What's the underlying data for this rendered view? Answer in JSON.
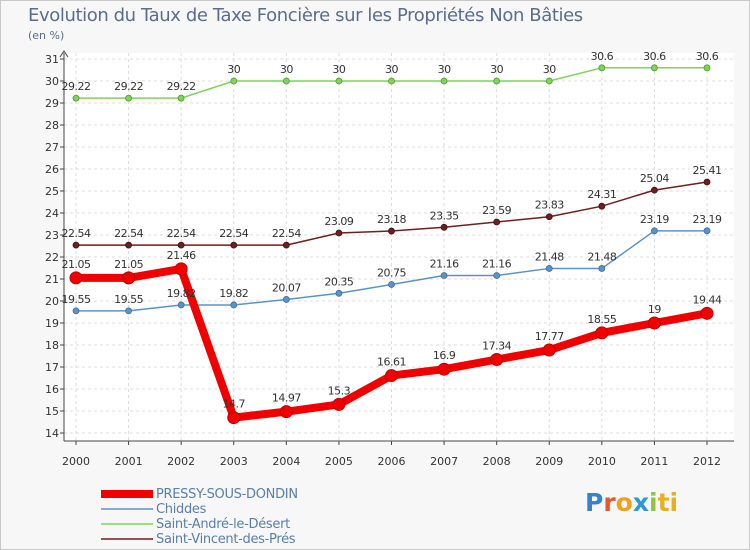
{
  "chart_data": {
    "type": "line",
    "title": "Evolution du Taux de Taxe Foncière sur les Propriétés Non Bâties",
    "subtitle": "(en %)",
    "x": [
      "2000",
      "2001",
      "2002",
      "2003",
      "2004",
      "2005",
      "2006",
      "2007",
      "2008",
      "2009",
      "2010",
      "2011",
      "2012"
    ],
    "ylim": [
      14,
      31
    ],
    "yticks": [
      "14",
      "15",
      "16",
      "17",
      "18",
      "19",
      "20",
      "21",
      "22",
      "23",
      "24",
      "25",
      "26",
      "27",
      "28",
      "29",
      "30",
      "31"
    ],
    "series": [
      {
        "name": "PRESSY-SOUS-DONDIN",
        "color": "#f00000",
        "values": [
          21.05,
          21.05,
          21.46,
          14.7,
          14.97,
          15.3,
          16.61,
          16.9,
          17.34,
          17.77,
          18.55,
          19,
          19.44
        ],
        "labels": [
          "21.05",
          "21.05",
          "21.46",
          "14.7",
          "14.97",
          "15.3",
          "16.61",
          "16.9",
          "17.34",
          "17.77",
          "18.55",
          "19",
          "19.44"
        ]
      },
      {
        "name": "Chiddes",
        "color": "#5b93c7",
        "values": [
          19.55,
          19.55,
          19.82,
          19.82,
          20.07,
          20.35,
          20.75,
          21.16,
          21.16,
          21.48,
          21.48,
          23.19,
          23.19
        ],
        "labels": [
          "19.55",
          "19.55",
          "19.82",
          "19.82",
          "20.07",
          "20.35",
          "20.75",
          "21.16",
          "21.16",
          "21.48",
          "21.48",
          "23.19",
          "23.19"
        ]
      },
      {
        "name": "Saint-André-le-Désert",
        "color": "#7fd35a",
        "values": [
          29.22,
          29.22,
          29.22,
          30,
          30,
          30,
          30,
          30,
          30,
          30,
          30.6,
          30.6,
          30.6
        ],
        "labels": [
          "29.22",
          "29.22",
          "29.22",
          "30",
          "30",
          "30",
          "30",
          "30",
          "30",
          "30",
          "30.6",
          "30.6",
          "30.6"
        ]
      },
      {
        "name": "Saint-Vincent-des-Prés",
        "color": "#6e1f1f",
        "values": [
          22.54,
          22.54,
          22.54,
          22.54,
          22.54,
          23.09,
          23.18,
          23.35,
          23.59,
          23.83,
          24.31,
          25.04,
          25.41
        ],
        "labels": [
          "22.54",
          "22.54",
          "22.54",
          "22.54",
          "22.54",
          "23.09",
          "23.18",
          "23.35",
          "23.59",
          "23.83",
          "24.31",
          "25.04",
          "25.41"
        ]
      }
    ]
  },
  "brand": {
    "logo_letters": [
      "P",
      "r",
      "o",
      "x",
      "i",
      "ti"
    ]
  }
}
